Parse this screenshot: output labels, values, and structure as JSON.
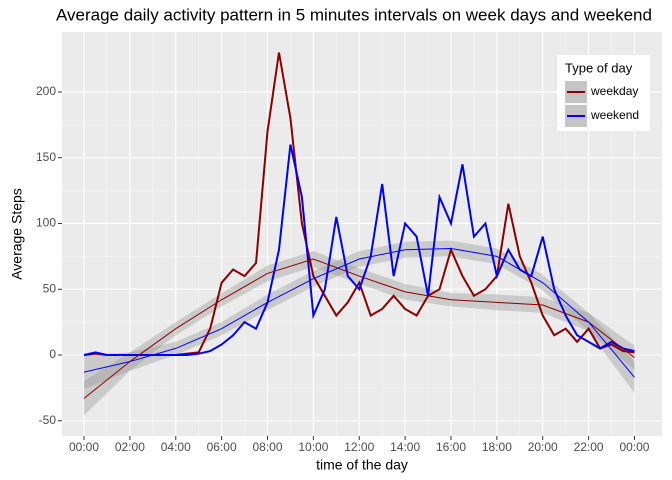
{
  "chart_data": {
    "type": "line",
    "title": "Average daily activity pattern in 5 minutes intervals on week days and weekend",
    "x_label": "time of the day",
    "y_label": "Average Steps",
    "legend_title": "Type of day",
    "legend_position": "top-right",
    "grid": true,
    "x": [
      0,
      0.5,
      1,
      1.5,
      2,
      2.5,
      3,
      3.5,
      4,
      4.5,
      5,
      5.5,
      6,
      6.5,
      7,
      7.5,
      8,
      8.5,
      9,
      9.5,
      10,
      10.5,
      11,
      11.5,
      12,
      12.5,
      13,
      13.5,
      14,
      14.5,
      15,
      15.5,
      16,
      16.5,
      17,
      17.5,
      18,
      18.5,
      19,
      19.5,
      20,
      20.5,
      21,
      21.5,
      22,
      22.5,
      23,
      23.5,
      24
    ],
    "smooth_x": [
      0,
      2,
      4,
      6,
      8,
      10,
      12,
      14,
      16,
      18,
      20,
      22,
      24
    ],
    "series": [
      {
        "name": "weekday",
        "color": "#8b0000",
        "values": [
          0,
          1,
          0,
          0,
          0,
          0,
          0,
          0,
          0,
          1,
          2,
          20,
          55,
          65,
          60,
          70,
          170,
          230,
          180,
          100,
          60,
          45,
          30,
          40,
          55,
          30,
          35,
          45,
          35,
          30,
          45,
          50,
          80,
          60,
          45,
          50,
          60,
          115,
          75,
          55,
          30,
          15,
          20,
          10,
          20,
          5,
          8,
          3,
          2
        ],
        "smooth": [
          -33,
          -5,
          20,
          42,
          62,
          73,
          60,
          48,
          42,
          40,
          38,
          25,
          -2
        ],
        "smooth_lower": [
          -46,
          -12,
          15,
          37,
          56,
          67,
          54,
          42,
          37,
          34,
          32,
          18,
          -11
        ],
        "smooth_upper": [
          -20,
          2,
          25,
          47,
          68,
          79,
          66,
          54,
          47,
          46,
          44,
          32,
          7
        ]
      },
      {
        "name": "weekend",
        "color": "#0000ff",
        "values": [
          0,
          2,
          0,
          0,
          0,
          0,
          0,
          0,
          0,
          0,
          1,
          3,
          8,
          15,
          25,
          20,
          40,
          80,
          160,
          120,
          30,
          50,
          105,
          60,
          50,
          75,
          130,
          60,
          100,
          90,
          45,
          120,
          100,
          145,
          90,
          100,
          60,
          80,
          65,
          60,
          90,
          50,
          30,
          15,
          10,
          5,
          10,
          5,
          3
        ],
        "smooth": [
          -13,
          -5,
          5,
          20,
          40,
          58,
          73,
          80,
          81,
          75,
          55,
          25,
          -17
        ],
        "smooth_lower": [
          -26,
          -12,
          0,
          15,
          34,
          52,
          67,
          74,
          75,
          69,
          49,
          18,
          -29
        ],
        "smooth_upper": [
          0,
          2,
          10,
          25,
          46,
          64,
          79,
          86,
          87,
          81,
          61,
          32,
          -5
        ]
      }
    ],
    "xlim": [
      -0.96,
      25.2
    ],
    "xticks": [
      {
        "value": 0,
        "label": "00:00"
      },
      {
        "value": 2,
        "label": "02:00"
      },
      {
        "value": 4,
        "label": "04:00"
      },
      {
        "value": 6,
        "label": "06:00"
      },
      {
        "value": 8,
        "label": "08:00"
      },
      {
        "value": 10,
        "label": "10:00"
      },
      {
        "value": 12,
        "label": "12:00"
      },
      {
        "value": 14,
        "label": "14:00"
      },
      {
        "value": 16,
        "label": "16:00"
      },
      {
        "value": 18,
        "label": "18:00"
      },
      {
        "value": 20,
        "label": "20:00"
      },
      {
        "value": 22,
        "label": "22:00"
      },
      {
        "value": 24,
        "label": "00:00"
      }
    ],
    "ylim": [
      -61.6,
      245.6
    ],
    "yticks": [
      -50,
      0,
      50,
      100,
      150,
      200
    ]
  }
}
